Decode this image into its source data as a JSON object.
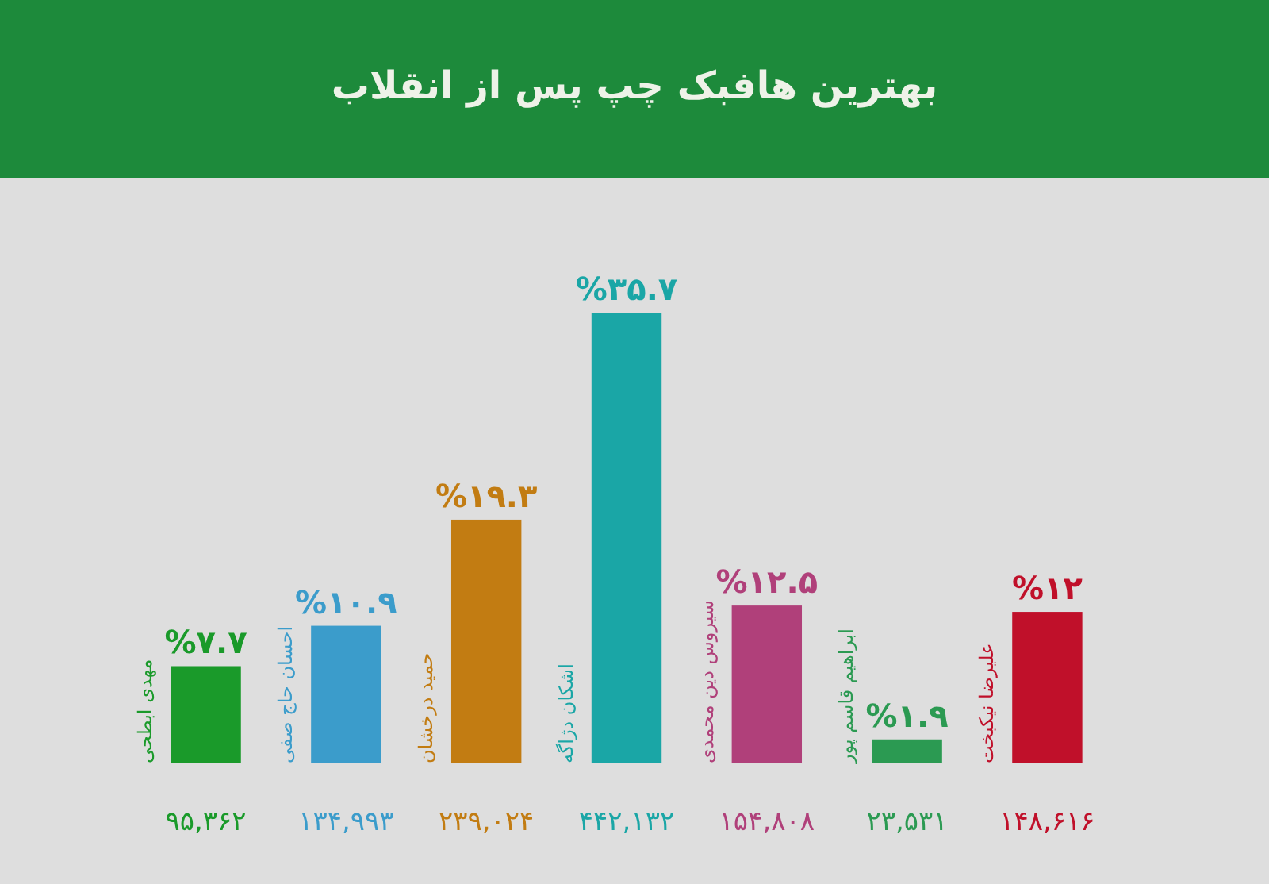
{
  "chart_data": {
    "type": "bar",
    "title": "بهترین هافبک چپ پس از انقلاب",
    "categories": [
      "مهدی ابطحی",
      "احسان حاج صفی",
      "حمید درخشان",
      "اشکان دژاگه",
      "سیروس دین محمدی",
      "ابراهیم قاسم پور",
      "علیرضا نیکبخت"
    ],
    "values": [
      7.7,
      10.9,
      19.3,
      35.7,
      12.5,
      1.9,
      12
    ],
    "colors": [
      "#1a9a2a",
      "#3b9ccb",
      "#c27c12",
      "#1aa6a6",
      "#b0407a",
      "#2b9a52",
      "#c0102a"
    ],
    "value_labels": [
      "%۷.۷",
      "%۱۰.۹",
      "%۱۹.۳",
      "%۳۵.۷",
      "%۱۲.۵",
      "%۱.۹",
      "%۱۲"
    ],
    "annotations": [
      "۹۵,۳۶۲",
      "۱۳۴,۹۹۳",
      "۲۳۹,۰۲۴",
      "۴۴۲,۱۳۲",
      "۱۵۴,۸۰۸",
      "۲۳,۵۳۱",
      "۱۴۸,۶۱۶"
    ]
  }
}
